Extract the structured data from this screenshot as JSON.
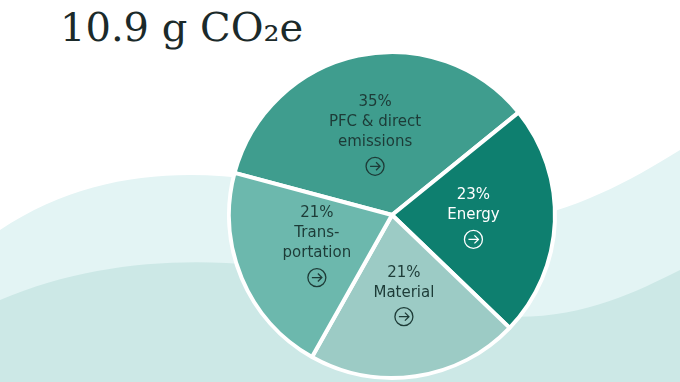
{
  "chart_data": {
    "type": "pie",
    "title": "10.9 g CO₂e",
    "categories": [
      "PFC & direct\nemissions",
      "Energy",
      "Material",
      "Trans-\nportation"
    ],
    "values": [
      35,
      23,
      21,
      21
    ],
    "value_labels": [
      "35%",
      "23%",
      "21%",
      "21%"
    ],
    "colors": [
      "#3f9d8e",
      "#0e7f6f",
      "#9ccbc5",
      "#6cb8ad"
    ],
    "data_labels": true
  }
}
